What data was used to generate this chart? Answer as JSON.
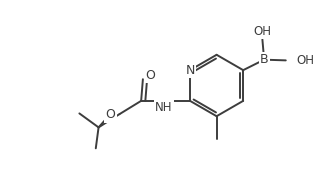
{
  "line_color": "#3d3d3d",
  "background_color": "#ffffff",
  "line_width": 1.4,
  "font_size": 8.5,
  "figsize": [
    3.32,
    1.71
  ],
  "dpi": 100,
  "xlim": [
    0,
    9.5
  ],
  "ylim": [
    0,
    4.9
  ]
}
